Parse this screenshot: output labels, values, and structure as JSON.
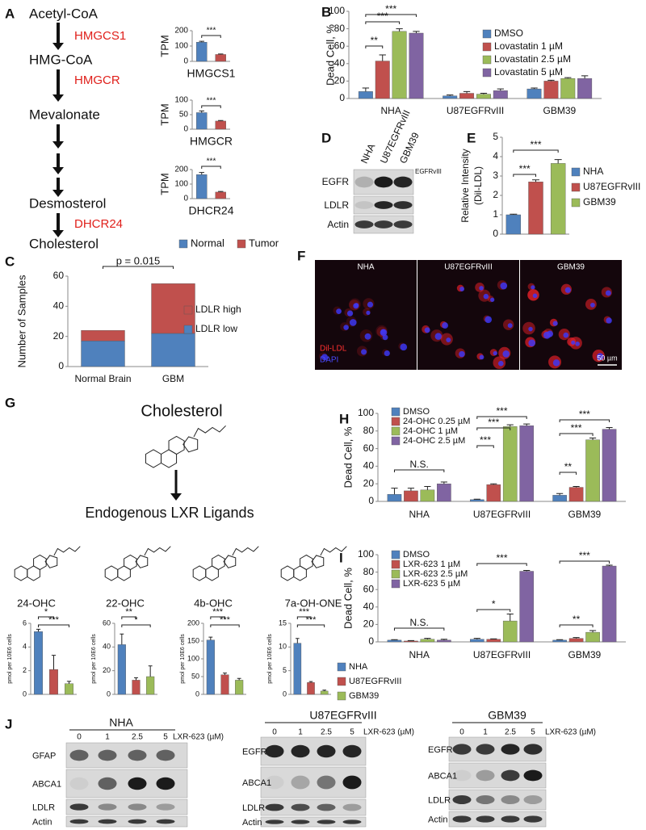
{
  "panel_labels": [
    "A",
    "B",
    "C",
    "D",
    "E",
    "F",
    "G",
    "H",
    "I",
    "J"
  ],
  "pathway": {
    "metabolites": [
      "Acetyl-CoA",
      "HMG-CoA",
      "Mevalonate",
      "Desmosterol",
      "Cholesterol"
    ],
    "enzymes": [
      "HMGCS1",
      "HMGCR",
      "DHCR24"
    ]
  },
  "legend_A": [
    {
      "name": "Normal",
      "color": "#4f81bd"
    },
    {
      "name": "Tumor",
      "color": "#c0504d"
    }
  ],
  "chart_data": [
    {
      "type": "bar",
      "ylabel": "TPM",
      "xlabel": "HMGCS1",
      "values": [
        125,
        45
      ],
      "errors": [
        6,
        3
      ],
      "colors": [
        "#4f81bd",
        "#c0504d"
      ],
      "ylim": [
        0,
        200
      ],
      "yticks": [
        0,
        100,
        200
      ],
      "annotations": [
        "***"
      ]
    },
    {
      "type": "bar",
      "ylabel": "TPM",
      "xlabel": "HMGCR",
      "values": [
        57,
        28
      ],
      "errors": [
        6,
        2
      ],
      "colors": [
        "#4f81bd",
        "#c0504d"
      ],
      "ylim": [
        0,
        100
      ],
      "yticks": [
        0,
        50,
        100
      ],
      "annotations": [
        "***"
      ]
    },
    {
      "type": "bar",
      "ylabel": "TPM",
      "xlabel": "DHCR24",
      "values": [
        165,
        45
      ],
      "errors": [
        15,
        4
      ],
      "colors": [
        "#4f81bd",
        "#c0504d"
      ],
      "ylim": [
        0,
        200
      ],
      "yticks": [
        0,
        100,
        200
      ],
      "annotations": [
        "***"
      ]
    },
    {
      "type": "bar",
      "ylabel": "Dead Cell, %",
      "categories": [
        "NHA",
        "U87EGFRvIII",
        "GBM39"
      ],
      "series": [
        {
          "name": "DMSO",
          "color": "#4f81bd",
          "values": [
            8,
            3,
            11
          ],
          "errors": [
            4,
            1,
            1
          ]
        },
        {
          "name": "Lovastatin 1 µM",
          "color": "#c0504d",
          "values": [
            43,
            6,
            20
          ],
          "errors": [
            7,
            2,
            1
          ]
        },
        {
          "name": "Lovastatin 2.5 µM",
          "color": "#9bbb59",
          "values": [
            77,
            5,
            23
          ],
          "errors": [
            3,
            1,
            1
          ]
        },
        {
          "name": "Lovastatin 5 µM",
          "color": "#8064a2",
          "values": [
            75,
            9,
            23
          ],
          "errors": [
            2,
            2,
            3
          ]
        }
      ],
      "ylim": [
        0,
        100
      ],
      "yticks": [
        0,
        20,
        40,
        60,
        80,
        100
      ],
      "annotations": [
        "**",
        "***",
        "***"
      ]
    },
    {
      "type": "stacked_bar",
      "ylabel": "Number of Samples",
      "categories": [
        "Normal Brain",
        "GBM"
      ],
      "series": [
        {
          "name": "LDLR low",
          "color": "#4f81bd",
          "values": [
            17,
            22
          ]
        },
        {
          "name": "LDLR high",
          "color": "#c0504d",
          "values": [
            7,
            33
          ]
        }
      ],
      "ylim": [
        0,
        60
      ],
      "yticks": [
        0,
        20,
        40,
        60
      ],
      "annotations": [
        "p = 0.015"
      ]
    },
    {
      "type": "bar",
      "ylabel": [
        "Relative Intensity",
        "(Dil-LDL)"
      ],
      "values": [
        1,
        2.7,
        3.65
      ],
      "errors": [
        0.03,
        0.1,
        0.2
      ],
      "colors": [
        "#4f81bd",
        "#c0504d",
        "#9bbb59"
      ],
      "ylim": [
        0,
        5
      ],
      "yticks": [
        0,
        1,
        2,
        3,
        4,
        5
      ],
      "annotations": [
        "***",
        "***"
      ]
    },
    {
      "type": "bar",
      "ylabel": "pmol per 10E6 cells",
      "values": [
        5.3,
        2.1,
        0.9
      ],
      "errors": [
        0.2,
        1.2,
        0.2
      ],
      "colors": [
        "#4f81bd",
        "#c0504d",
        "#9bbb59"
      ],
      "ylim": [
        0,
        6
      ],
      "yticks": [
        0,
        2,
        4,
        6
      ],
      "annotations": [
        "*",
        "***"
      ]
    },
    {
      "type": "bar",
      "ylabel": "pmol per 10E6 cells",
      "values": [
        42,
        12,
        15
      ],
      "errors": [
        9,
        2,
        9
      ],
      "colors": [
        "#4f81bd",
        "#c0504d",
        "#9bbb59"
      ],
      "ylim": [
        0,
        60
      ],
      "yticks": [
        0,
        20,
        40,
        60
      ],
      "annotations": [
        "**",
        "*"
      ]
    },
    {
      "type": "bar",
      "ylabel": "pmol per 10E6 cells",
      "values": [
        153,
        55,
        40
      ],
      "errors": [
        8,
        5,
        5
      ],
      "colors": [
        "#4f81bd",
        "#c0504d",
        "#9bbb59"
      ],
      "ylim": [
        0,
        200
      ],
      "yticks": [
        0,
        50,
        100,
        150,
        200
      ],
      "annotations": [
        "***",
        "***"
      ]
    },
    {
      "type": "bar",
      "ylabel": "pmol per 10E6 cells",
      "values": [
        10.8,
        2.5,
        0.7
      ],
      "errors": [
        1,
        0.2,
        0.2
      ],
      "colors": [
        "#4f81bd",
        "#c0504d",
        "#9bbb59"
      ],
      "ylim": [
        0,
        15
      ],
      "yticks": [
        0,
        5,
        10,
        15
      ],
      "annotations": [
        "***",
        "***"
      ]
    },
    {
      "type": "bar",
      "ylabel": "Dead Cell, %",
      "categories": [
        "NHA",
        "U87EGFRvIII",
        "GBM39"
      ],
      "series": [
        {
          "name": "DMSO",
          "color": "#4f81bd",
          "values": [
            8,
            2,
            7
          ],
          "errors": [
            7,
            0.5,
            2
          ]
        },
        {
          "name": "24-OHC 0.25 µM",
          "color": "#c0504d",
          "values": [
            12,
            19,
            16
          ],
          "errors": [
            3,
            1,
            1
          ]
        },
        {
          "name": "24-OHC 1 µM",
          "color": "#9bbb59",
          "values": [
            13,
            85,
            70
          ],
          "errors": [
            4,
            2,
            2
          ]
        },
        {
          "name": "24-OHC 2.5 µM",
          "color": "#8064a2",
          "values": [
            20,
            86,
            82
          ],
          "errors": [
            2,
            2,
            2
          ]
        }
      ],
      "ylim": [
        0,
        100
      ],
      "yticks": [
        0,
        20,
        40,
        60,
        80,
        100
      ],
      "annotations": [
        "N.S.",
        "***",
        "***",
        "***",
        "**",
        "***",
        "***"
      ]
    },
    {
      "type": "bar",
      "ylabel": "Dead Cell, %",
      "categories": [
        "NHA",
        "U87EGFRvIII",
        "GBM39"
      ],
      "series": [
        {
          "name": "DMSO",
          "color": "#4f81bd",
          "values": [
            2,
            3,
            2
          ],
          "errors": [
            0.5,
            1,
            0.5
          ]
        },
        {
          "name": "LXR-623 1 µM",
          "color": "#c0504d",
          "values": [
            1,
            3,
            4
          ],
          "errors": [
            0.5,
            0.5,
            1
          ]
        },
        {
          "name": "LXR-623 2.5 µM",
          "color": "#9bbb59",
          "values": [
            3,
            24,
            11
          ],
          "errors": [
            1,
            8,
            2
          ]
        },
        {
          "name": "LXR-623 5 µM",
          "color": "#8064a2",
          "values": [
            2,
            81,
            87
          ],
          "errors": [
            1,
            1,
            1
          ]
        }
      ],
      "ylim": [
        0,
        100
      ],
      "yticks": [
        0,
        20,
        40,
        60,
        80,
        100
      ],
      "annotations": [
        "N.S.",
        "*",
        "***",
        "**",
        "***"
      ]
    }
  ],
  "legend_E": [
    {
      "name": "NHA",
      "color": "#4f81bd"
    },
    {
      "name": "U87EGFRvIII",
      "color": "#c0504d"
    },
    {
      "name": "GBM39",
      "color": "#9bbb59"
    }
  ],
  "blot_D": {
    "lanes": [
      "NHA",
      "U87EGFRvIII",
      "GBM39"
    ],
    "rows": [
      "EGFR",
      "LDLR",
      "Actin"
    ],
    "note": "EGFRvIII"
  },
  "image_F": {
    "panels": [
      "NHA",
      "U87EGFRvIII",
      "GBM39"
    ],
    "stains": [
      "Dil-LDL",
      "DAPI"
    ],
    "scale_bar": "50 µm"
  },
  "figure_G": {
    "source": "Cholesterol",
    "heading": "Endogenous LXR Ligands",
    "ligands": [
      "24-OHC",
      "22-OHC",
      "4b-OHC",
      "7a-OH-ONE"
    ]
  },
  "legend_G": [
    {
      "name": "NHA",
      "color": "#4f81bd"
    },
    {
      "name": "U87EGFRvIII",
      "color": "#c0504d"
    },
    {
      "name": "GBM39",
      "color": "#9bbb59"
    }
  ],
  "blots_J": [
    {
      "cell_line": "NHA",
      "doses": [
        0,
        1,
        2.5,
        5
      ],
      "treatment": "LXR-623 (µM)",
      "rows": [
        "GFAP",
        "ABCA1",
        "LDLR",
        "Actin"
      ]
    },
    {
      "cell_line": "U87EGFRvIII",
      "doses": [
        0,
        1,
        2.5,
        5
      ],
      "treatment": "LXR-623 (µM)",
      "rows": [
        "EGFR",
        "ABCA1",
        "LDLR",
        "Actin"
      ]
    },
    {
      "cell_line": "GBM39",
      "doses": [
        0,
        1,
        2.5,
        5
      ],
      "treatment": "LXR-623 (µM)",
      "rows": [
        "EGFR",
        "ABCA1",
        "LDLR",
        "Actin"
      ]
    }
  ]
}
